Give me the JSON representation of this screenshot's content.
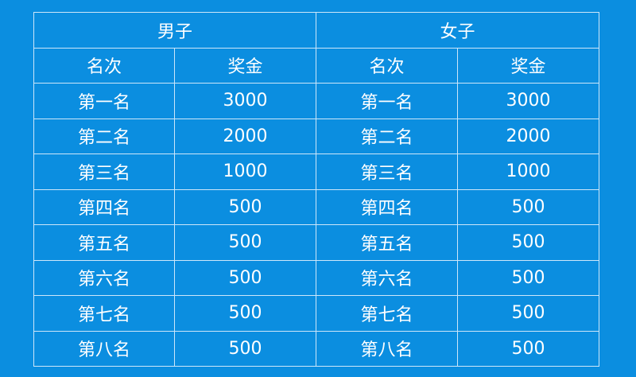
{
  "groups": [
    "男子",
    "女子"
  ],
  "columns": [
    "名次",
    "奖金"
  ],
  "rows": [
    {
      "rank": "第一名",
      "men": "3000",
      "women": "3000"
    },
    {
      "rank": "第二名",
      "men": "2000",
      "women": "2000"
    },
    {
      "rank": "第三名",
      "men": "1000",
      "women": "1000"
    },
    {
      "rank": "第四名",
      "men": "500",
      "women": "500"
    },
    {
      "rank": "第五名",
      "men": "500",
      "women": "500"
    },
    {
      "rank": "第六名",
      "men": "500",
      "women": "500"
    },
    {
      "rank": "第七名",
      "men": "500",
      "women": "500"
    },
    {
      "rank": "第八名",
      "men": "500",
      "women": "500"
    }
  ],
  "colors": {
    "background": "#0b8ee0",
    "border": "#cde7fa",
    "text": "#ffffff"
  }
}
